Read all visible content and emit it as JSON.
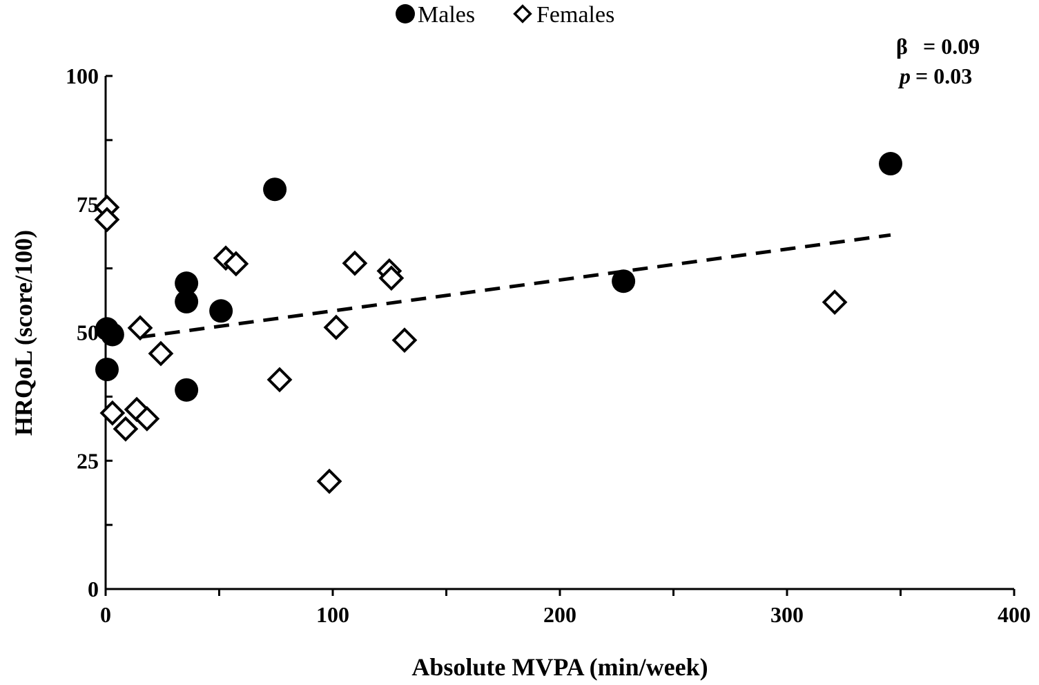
{
  "chart_data": {
    "type": "scatter",
    "title": "",
    "xlabel": "Absolute MVPA (min/week)",
    "ylabel": "HRQoL (score/100)",
    "xlim": [
      0,
      400
    ],
    "ylim": [
      0,
      100
    ],
    "xticks": [
      0,
      100,
      200,
      300,
      400
    ],
    "xminor": [
      50,
      150,
      250,
      350
    ],
    "yticks": [
      0,
      25,
      50,
      75,
      100
    ],
    "yminor": [
      12.5,
      37.5,
      62.5,
      87.5
    ],
    "grid": false,
    "legend": {
      "placement": "top-center",
      "entries": [
        "Males",
        "Females"
      ]
    },
    "annotation": {
      "beta_label": "β",
      "beta_value": "= 0.09",
      "p_label": "p",
      "p_value": "= 0.03"
    },
    "series": [
      {
        "name": "Males",
        "marker": "filled-circle",
        "points": [
          [
            345.6,
            82.9
          ],
          [
            74.5,
            77.9
          ],
          [
            35.6,
            59.6
          ],
          [
            35.6,
            56.0
          ],
          [
            50.8,
            54.2
          ],
          [
            0.6,
            50.7
          ],
          [
            3.0,
            49.6
          ],
          [
            0.6,
            42.8
          ],
          [
            35.6,
            38.8
          ],
          [
            228,
            60.0
          ]
        ]
      },
      {
        "name": "Females",
        "marker": "open-diamond",
        "points": [
          [
            0.6,
            74.4
          ],
          [
            0.6,
            72.0
          ],
          [
            52.9,
            64.5
          ],
          [
            57.4,
            63.4
          ],
          [
            109.7,
            63.5
          ],
          [
            124.9,
            62.0
          ],
          [
            125.8,
            60.6
          ],
          [
            321,
            55.9
          ],
          [
            101.5,
            51.0
          ],
          [
            15.2,
            50.9
          ],
          [
            24.3,
            45.9
          ],
          [
            131.6,
            48.5
          ],
          [
            76.6,
            40.8
          ],
          [
            3.0,
            34.3
          ],
          [
            13.7,
            35.0
          ],
          [
            18.2,
            33.2
          ],
          [
            8.8,
            31.2
          ],
          [
            98.5,
            21.0
          ]
        ]
      }
    ],
    "trendline": {
      "style": "dashed",
      "from": [
        15.2,
        49.1
      ],
      "to": [
        345.6,
        69.0
      ]
    }
  }
}
